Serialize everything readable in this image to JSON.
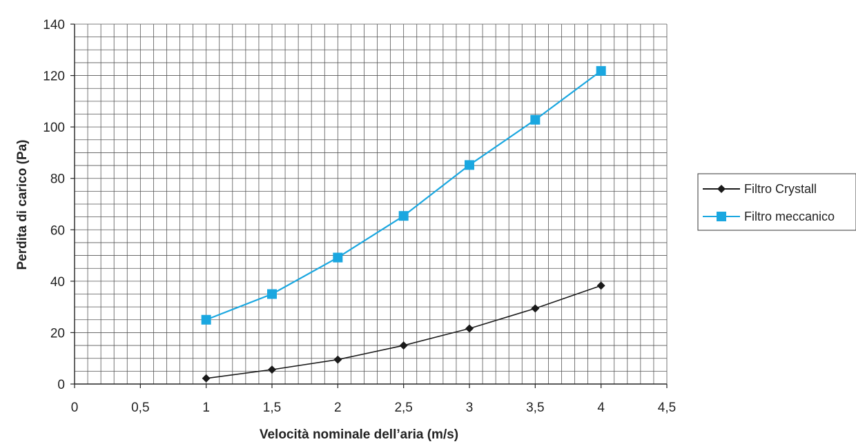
{
  "chart_data": {
    "type": "line",
    "xlabel": "Velocità nominale dell’aria (m/s)",
    "ylabel": "Perdita di carico (Pa)",
    "xlim": [
      0,
      4.5
    ],
    "ylim": [
      0,
      140
    ],
    "x_ticks": [
      {
        "value": 0,
        "label": "0"
      },
      {
        "value": 0.5,
        "label": "0,5"
      },
      {
        "value": 1,
        "label": "1"
      },
      {
        "value": 1.5,
        "label": "1,5"
      },
      {
        "value": 2,
        "label": "2"
      },
      {
        "value": 2.5,
        "label": "2,5"
      },
      {
        "value": 3,
        "label": "3"
      },
      {
        "value": 3.5,
        "label": "3,5"
      },
      {
        "value": 4,
        "label": "4"
      },
      {
        "value": 4.5,
        "label": "4,5"
      }
    ],
    "y_ticks": [
      {
        "value": 0,
        "label": "0"
      },
      {
        "value": 20,
        "label": "20"
      },
      {
        "value": 40,
        "label": "40"
      },
      {
        "value": 60,
        "label": "60"
      },
      {
        "value": 80,
        "label": "80"
      },
      {
        "value": 100,
        "label": "100"
      },
      {
        "value": 120,
        "label": "120"
      },
      {
        "value": 140,
        "label": "140"
      }
    ],
    "grid": true,
    "legend_position": "right",
    "x": [
      1,
      1.5,
      2,
      2.5,
      3,
      3.5,
      4
    ],
    "series": [
      {
        "name": "Filtro Crystall",
        "values": [
          2.2,
          5.6,
          9.5,
          15.0,
          21.6,
          29.4,
          38.3
        ],
        "color": "#1a1a1a",
        "marker": "diamond"
      },
      {
        "name": "Filtro meccanico",
        "values": [
          25.0,
          35.0,
          49.2,
          65.4,
          85.2,
          102.8,
          121.8
        ],
        "color": "#1aa7e0",
        "marker": "square"
      }
    ]
  }
}
